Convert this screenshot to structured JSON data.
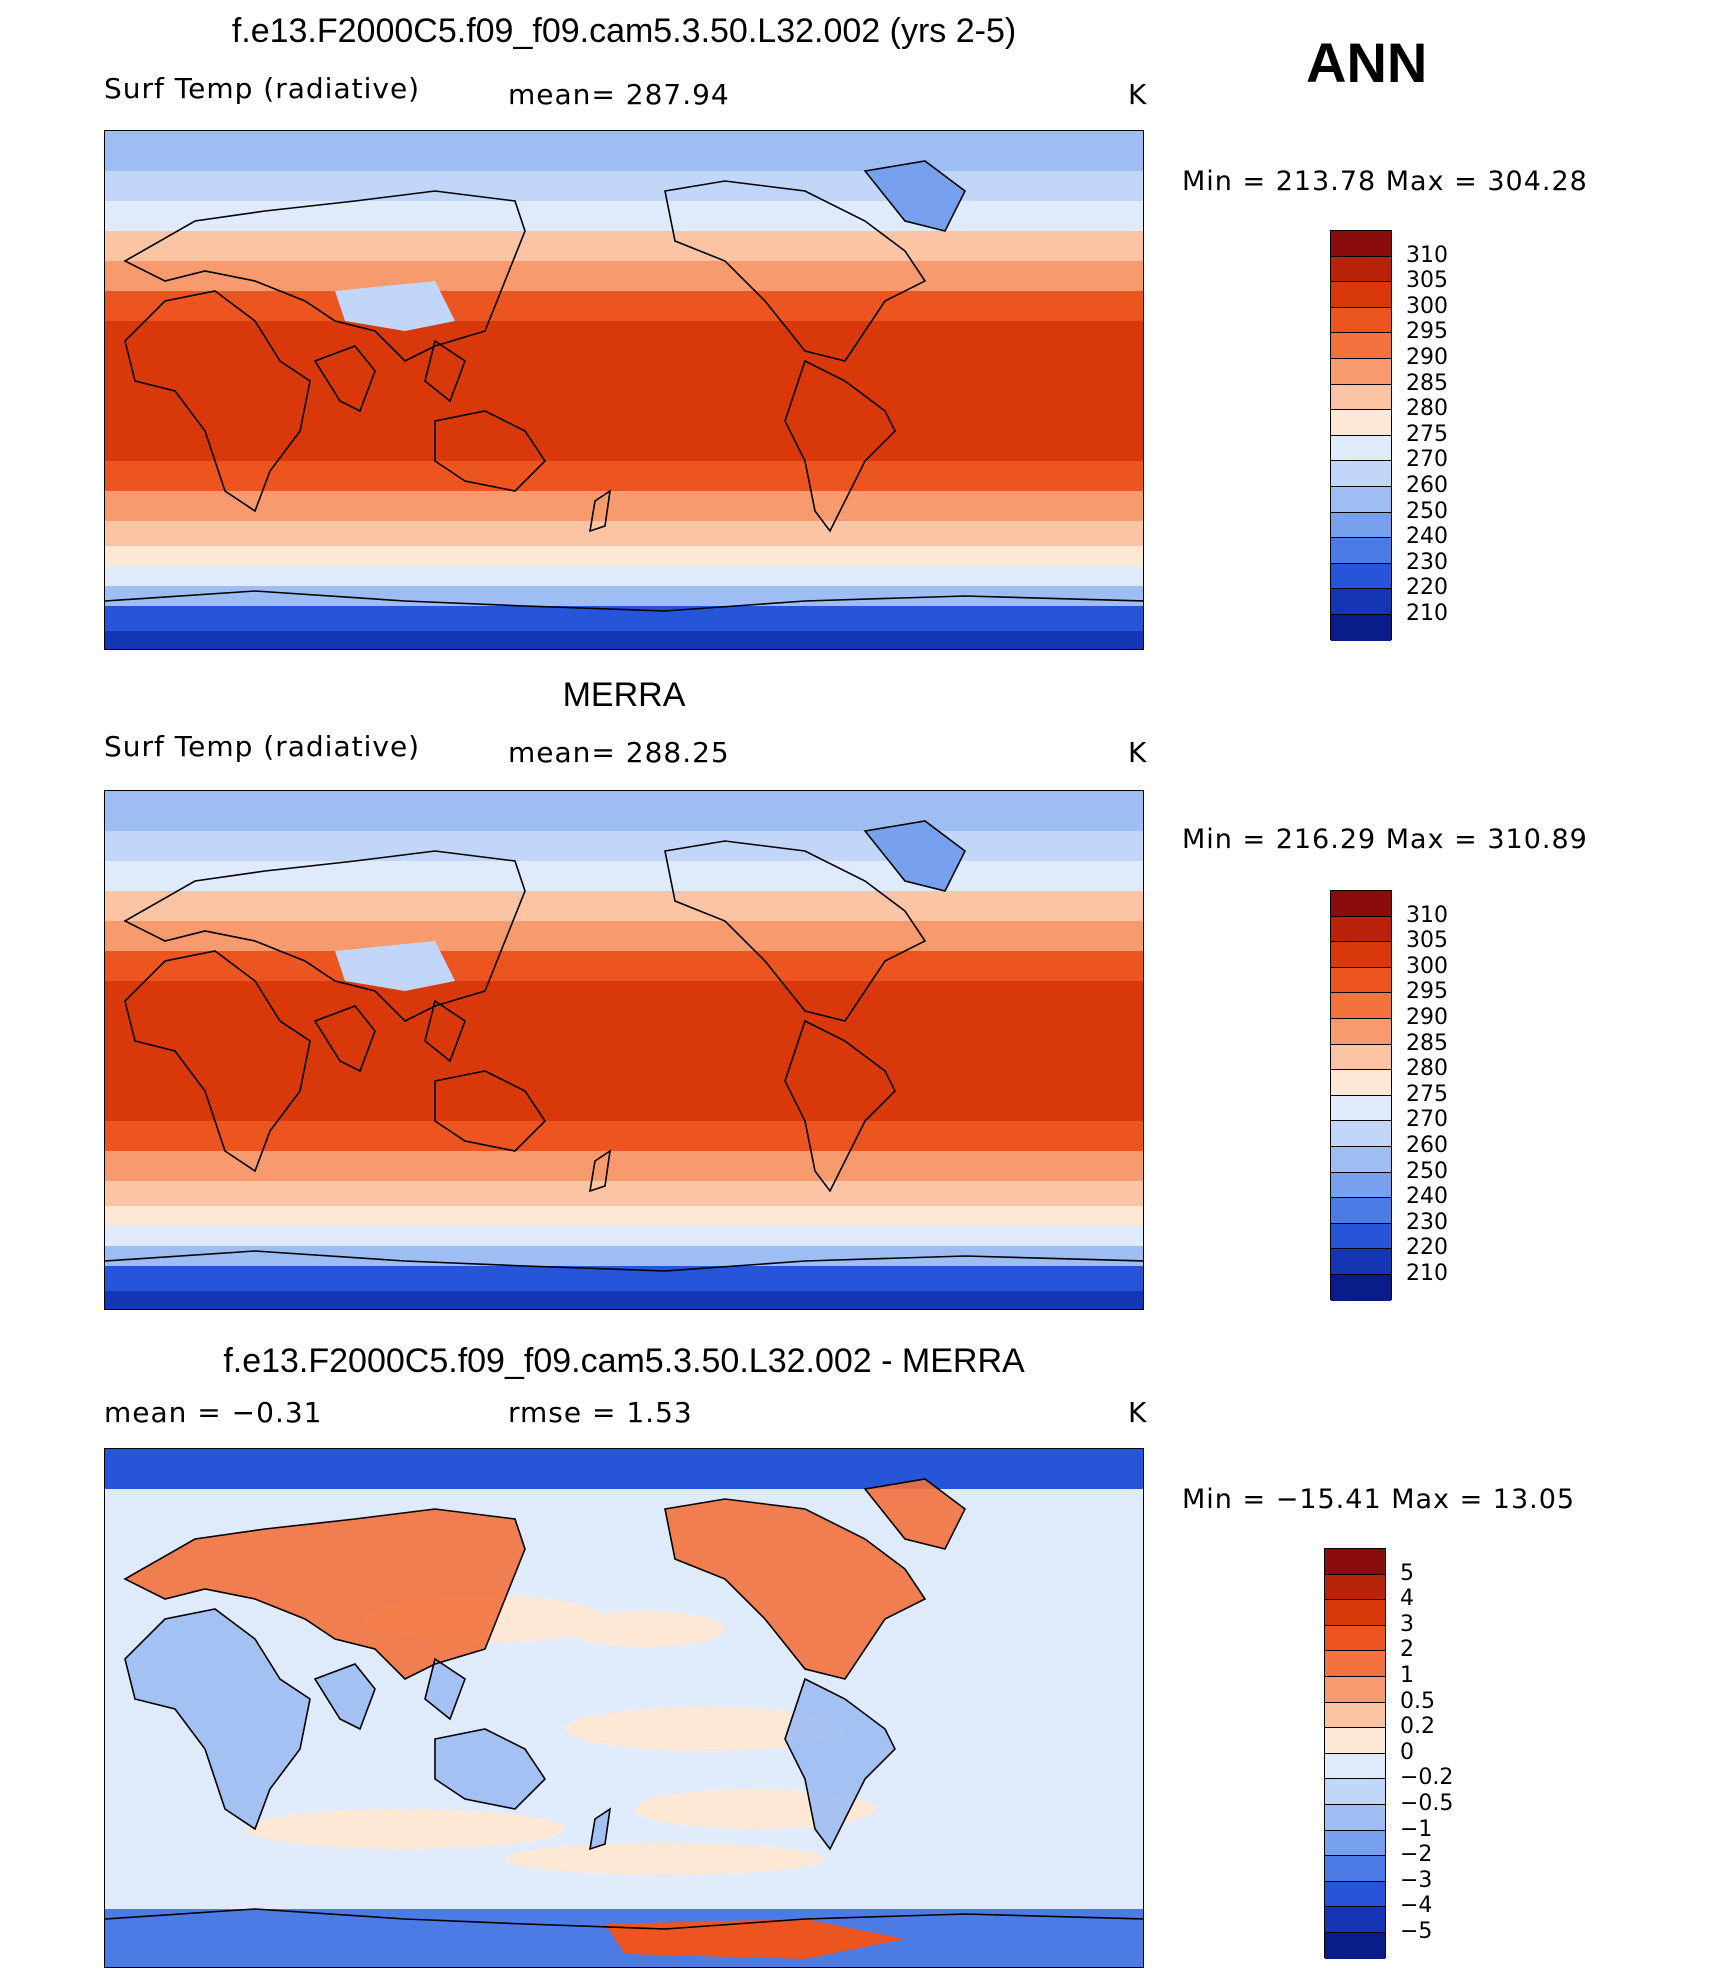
{
  "season": "ANN",
  "panels": [
    {
      "title": "f.e13.F2000C5.f09_f09.cam5.3.50.L32.002 (yrs 2-5)",
      "variable": "Surf Temp (radiative)",
      "stat_text": "mean= 287.94",
      "units": "K",
      "minmax": "Min = 213.78 Max = 304.28",
      "scheme": "abs"
    },
    {
      "title": "MERRA",
      "variable": "Surf Temp (radiative)",
      "stat_text": "mean= 288.25",
      "units": "K",
      "minmax": "Min = 216.29 Max = 310.89",
      "scheme": "abs"
    },
    {
      "title": "f.e13.F2000C5.f09_f09.cam5.3.50.L32.002 - MERRA",
      "variable": "mean = −0.31",
      "stat_text": "rmse = 1.53",
      "units": "K",
      "minmax": "Min = −15.41 Max = 13.05",
      "scheme": "diff"
    }
  ],
  "colorbars": {
    "abs": {
      "labels": [
        "310",
        "305",
        "300",
        "295",
        "290",
        "285",
        "280",
        "275",
        "270",
        "260",
        "250",
        "240",
        "230",
        "220",
        "210"
      ],
      "colors": [
        "#8b0c0c",
        "#b8230a",
        "#d9380b",
        "#ec5420",
        "#f3723d",
        "#f79a6e",
        "#fbc4a4",
        "#fde8d6",
        "#dfeafb",
        "#c1d6f8",
        "#9dbdf3",
        "#77a1ee",
        "#4c7be6",
        "#2755d9",
        "#1436b4",
        "#0a1c8a"
      ]
    },
    "diff": {
      "labels": [
        "5",
        "4",
        "3",
        "2",
        "1",
        "0.5",
        "0.2",
        "0",
        "−0.2",
        "−0.5",
        "−1",
        "−2",
        "−3",
        "−4",
        "−5"
      ],
      "colors": [
        "#8b0c0c",
        "#b8230a",
        "#d9380b",
        "#ec5420",
        "#f3723d",
        "#f79a6e",
        "#fbc4a4",
        "#fde8d6",
        "#dfeafb",
        "#c1d6f8",
        "#9dbdf3",
        "#77a1ee",
        "#4c7be6",
        "#2755d9",
        "#1436b4",
        "#0a1c8a"
      ]
    }
  }
}
